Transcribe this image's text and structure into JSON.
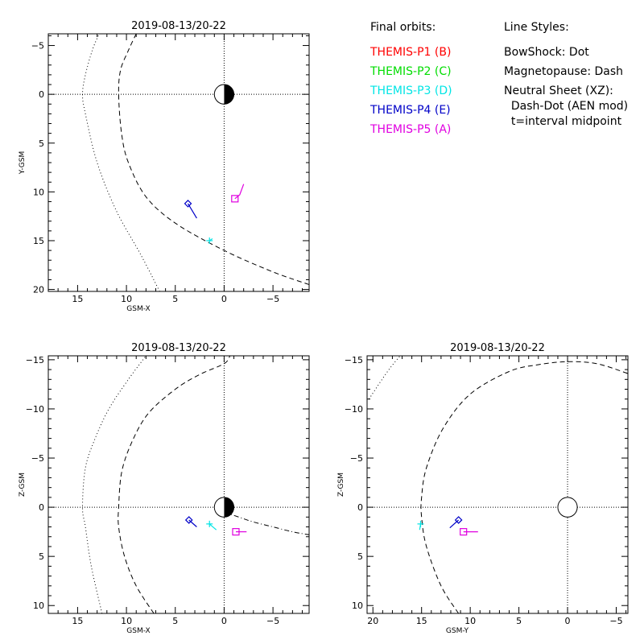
{
  "legend": {
    "orbits_title": "Final orbits:",
    "orbits": [
      {
        "label": "THEMIS-P1 (B)",
        "color": "#ff0000"
      },
      {
        "label": "THEMIS-P2 (C)",
        "color": "#00dd00"
      },
      {
        "label": "THEMIS-P3 (D)",
        "color": "#00e5e5"
      },
      {
        "label": "THEMIS-P4 (E)",
        "color": "#0000c8"
      },
      {
        "label": "THEMIS-P5 (A)",
        "color": "#e000e0"
      }
    ],
    "styles_title": "Line Styles:",
    "styles": [
      "BowShock: Dot",
      "Magnetopause: Dash",
      "Neutral Sheet (XZ):",
      "  Dash-Dot (AEN mod)",
      "  t=interval midpoint"
    ]
  },
  "chart_data": [
    {
      "type": "scatter",
      "title": "2019-08-13/20-22",
      "xlabel": "GSM-X",
      "ylabel": "Y-GSM",
      "xlim": [
        18,
        -8.7
      ],
      "ylim": [
        -6.2,
        20.2
      ],
      "x_ticks": [
        15,
        10,
        5,
        0,
        -5
      ],
      "y_ticks": [
        -5,
        0,
        5,
        10,
        15,
        20
      ],
      "grid_zero_lines": true,
      "earth": {
        "x": 0,
        "y": 0,
        "radius": 1.0,
        "shading": "half-dark"
      },
      "bow_shock": {
        "style": "dot",
        "points": [
          [
            6.6,
            20.2
          ],
          [
            8.5,
            16.5
          ],
          [
            11,
            12
          ],
          [
            13,
            7
          ],
          [
            14.2,
            2
          ],
          [
            14.5,
            0
          ],
          [
            14.2,
            -2
          ],
          [
            13.5,
            -4.5
          ],
          [
            12.8,
            -6.2
          ]
        ]
      },
      "magnetopause": {
        "style": "dash",
        "points": [
          [
            -8.7,
            19.5
          ],
          [
            -5,
            18.2
          ],
          [
            0,
            16
          ],
          [
            5,
            13.2
          ],
          [
            8,
            10.5
          ],
          [
            9.8,
            7
          ],
          [
            10.5,
            4
          ],
          [
            10.8,
            0
          ],
          [
            10.6,
            -2.5
          ],
          [
            9.8,
            -4.5
          ],
          [
            9,
            -6.2
          ]
        ]
      },
      "spacecraft": [
        {
          "name": "THEMIS-P3 (D)",
          "color": "#00e5e5",
          "symbol": "plus",
          "x": 1.5,
          "y": 15.0,
          "track": [
            [
              1.5,
              15.0
            ],
            [
              1.2,
              14.8
            ]
          ]
        },
        {
          "name": "THEMIS-P4 (E)",
          "color": "#0000c8",
          "symbol": "diamond",
          "x": 3.7,
          "y": 11.2,
          "track": [
            [
              3.7,
              11.2
            ],
            [
              2.8,
              12.7
            ]
          ]
        },
        {
          "name": "THEMIS-P5 (A)",
          "color": "#e000e0",
          "symbol": "square",
          "x": -1.1,
          "y": 10.7,
          "track": [
            [
              -1.1,
              10.7
            ],
            [
              -1.6,
              10.3
            ],
            [
              -2.0,
              9.2
            ]
          ]
        }
      ]
    },
    {
      "type": "scatter",
      "title": "2019-08-13/20-22",
      "xlabel": "GSM-X",
      "ylabel": "Z-GSM",
      "xlim": [
        18,
        -8.7
      ],
      "ylim": [
        -15.4,
        10.8
      ],
      "x_ticks": [
        15,
        10,
        5,
        0,
        -5
      ],
      "y_ticks": [
        10,
        5,
        0,
        -5,
        -10,
        -15
      ],
      "grid_zero_lines": true,
      "earth": {
        "x": 0,
        "y": 0,
        "radius": 1.0,
        "shading": "half-dark"
      },
      "bow_shock": {
        "style": "dot",
        "points": [
          [
            12.5,
            10.8
          ],
          [
            13.6,
            6
          ],
          [
            14.2,
            2
          ],
          [
            14.5,
            0
          ],
          [
            14.2,
            -4
          ],
          [
            13.2,
            -7
          ],
          [
            11.8,
            -10
          ],
          [
            9.8,
            -13
          ],
          [
            8,
            -15.4
          ]
        ]
      },
      "magnetopause": {
        "style": "dash",
        "points": [
          [
            7.2,
            10.8
          ],
          [
            9,
            8
          ],
          [
            10.2,
            5
          ],
          [
            10.8,
            2
          ],
          [
            10.8,
            0
          ],
          [
            10.5,
            -3.5
          ],
          [
            9.5,
            -6.5
          ],
          [
            7.8,
            -9.5
          ],
          [
            5,
            -12
          ],
          [
            2.5,
            -13.5
          ],
          [
            0,
            -14.6
          ],
          [
            -0.6,
            -15.4
          ]
        ]
      },
      "neutral_sheet": {
        "style": "dash-dot",
        "points": [
          [
            0,
            0.5
          ],
          [
            -1.5,
            1.0
          ],
          [
            -3,
            1.5
          ],
          [
            -5,
            2.0
          ],
          [
            -7,
            2.5
          ],
          [
            -8.7,
            2.8
          ]
        ]
      },
      "spacecraft": [
        {
          "name": "THEMIS-P3 (D)",
          "color": "#00e5e5",
          "symbol": "plus",
          "x": 1.5,
          "y": 1.7,
          "track": [
            [
              1.5,
              1.7
            ],
            [
              0.8,
              2.3
            ]
          ]
        },
        {
          "name": "THEMIS-P4 (E)",
          "color": "#0000c8",
          "symbol": "diamond",
          "x": 3.6,
          "y": 1.3,
          "track": [
            [
              3.6,
              1.3
            ],
            [
              2.8,
              2.0
            ]
          ]
        },
        {
          "name": "THEMIS-P5 (A)",
          "color": "#e000e0",
          "symbol": "square",
          "x": -1.2,
          "y": 2.5,
          "track": [
            [
              -1.2,
              2.5
            ],
            [
              -2.3,
              2.5
            ]
          ]
        }
      ]
    },
    {
      "type": "scatter",
      "title": "2019-08-13/20-22",
      "xlabel": "GSM-Y",
      "ylabel": "Z-GSM",
      "xlim": [
        20.6,
        -6.2
      ],
      "ylim": [
        -15.4,
        10.8
      ],
      "x_ticks": [
        20,
        15,
        10,
        5,
        0,
        -5
      ],
      "y_ticks": [
        10,
        5,
        0,
        -5,
        -10,
        -15
      ],
      "grid_zero_lines": true,
      "earth": {
        "x": 0,
        "y": 0,
        "radius": 1.0,
        "shading": "none"
      },
      "bow_shock": {
        "style": "dot",
        "points": [
          [
            20.4,
            -11
          ],
          [
            19.2,
            -12.8
          ],
          [
            18.2,
            -14.2
          ],
          [
            17.2,
            -15.4
          ]
        ]
      },
      "magnetopause": {
        "style": "dash",
        "points": [
          [
            11.2,
            10.8
          ],
          [
            13,
            8
          ],
          [
            14.5,
            4
          ],
          [
            15,
            1
          ],
          [
            15,
            -1
          ],
          [
            14.5,
            -4
          ],
          [
            12.8,
            -8
          ],
          [
            10,
            -11.5
          ],
          [
            6,
            -13.8
          ],
          [
            3,
            -14.5
          ],
          [
            0,
            -14.8
          ],
          [
            -3,
            -14.6
          ],
          [
            -6.2,
            -13.6
          ]
        ]
      },
      "spacecraft": [
        {
          "name": "THEMIS-P3 (D)",
          "color": "#00e5e5",
          "symbol": "plus",
          "x": 15.1,
          "y": 1.7,
          "track": [
            [
              15.1,
              1.7
            ],
            [
              15.2,
              2.3
            ]
          ]
        },
        {
          "name": "THEMIS-P4 (E)",
          "color": "#0000c8",
          "symbol": "diamond",
          "x": 11.2,
          "y": 1.3,
          "track": [
            [
              11.2,
              1.3
            ],
            [
              12.1,
              2.1
            ]
          ]
        },
        {
          "name": "THEMIS-P5 (A)",
          "color": "#e000e0",
          "symbol": "square",
          "x": 10.7,
          "y": 2.5,
          "track": [
            [
              10.7,
              2.5
            ],
            [
              9.2,
              2.5
            ]
          ]
        }
      ]
    }
  ]
}
